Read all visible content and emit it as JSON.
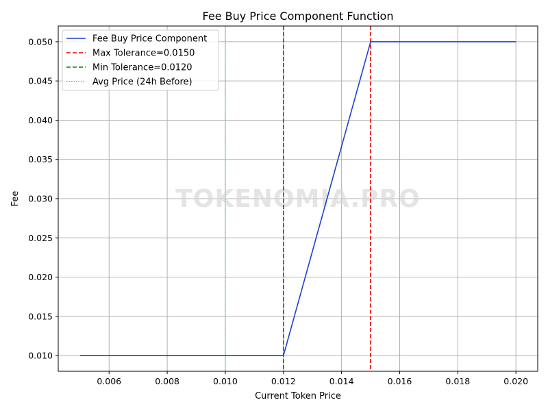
{
  "chart_data": {
    "type": "line",
    "title": "Fee Buy Price Component Function",
    "xlabel": "Current Token Price",
    "ylabel": "Fee",
    "xlim": [
      0.00425,
      0.02075
    ],
    "ylim": [
      0.008,
      0.052
    ],
    "xticks": [
      0.006,
      0.008,
      0.01,
      0.012,
      0.014,
      0.016,
      0.018,
      0.02
    ],
    "xtick_labels": [
      "0.006",
      "0.008",
      "0.010",
      "0.012",
      "0.014",
      "0.016",
      "0.018",
      "0.020"
    ],
    "yticks": [
      0.01,
      0.015,
      0.02,
      0.025,
      0.03,
      0.035,
      0.04,
      0.045,
      0.05
    ],
    "ytick_labels": [
      "0.010",
      "0.015",
      "0.020",
      "0.025",
      "0.030",
      "0.035",
      "0.040",
      "0.045",
      "0.050"
    ],
    "grid": true,
    "legend_position": "top-left",
    "series": [
      {
        "name": "Fee Buy Price Component",
        "color": "#1f3fd6",
        "style": "solid",
        "x": [
          0.005,
          0.012,
          0.015,
          0.02
        ],
        "y": [
          0.01,
          0.01,
          0.05,
          0.05
        ]
      }
    ],
    "vlines": [
      {
        "name": "Max Tolerance=0.0150",
        "x": 0.015,
        "color": "#e00000",
        "style": "dashed"
      },
      {
        "name": "Min Tolerance=0.0120",
        "x": 0.012,
        "color": "#008000",
        "style": "dashed"
      },
      {
        "name": "Avg Price (24h Before)",
        "x": 0.01,
        "color": "#2ec4a0",
        "style": "dotted"
      }
    ],
    "watermark": "TOKENOMIA.PRO"
  }
}
